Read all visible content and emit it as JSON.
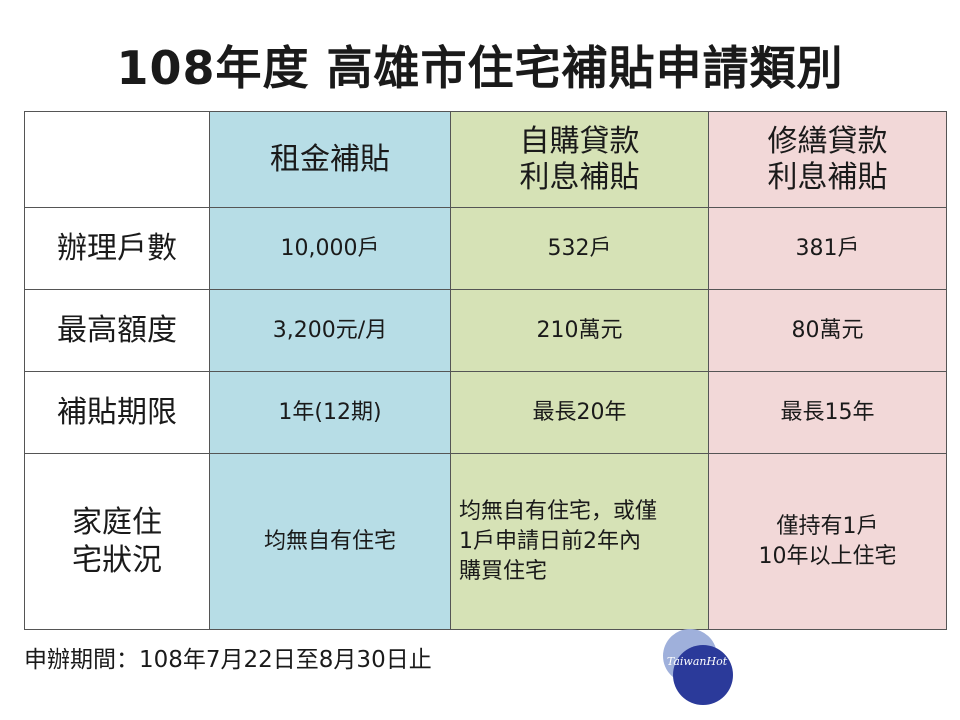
{
  "title": "108年度 高雄市住宅補貼申請類別",
  "table": {
    "columns": [
      {
        "lines": [
          "租金補貼"
        ]
      },
      {
        "lines": [
          "自購貸款",
          "利息補貼"
        ]
      },
      {
        "lines": [
          "修繕貸款",
          "利息補貼"
        ]
      }
    ],
    "rows": [
      {
        "label": [
          "辦理戶數"
        ],
        "values": [
          [
            "10,000戶"
          ],
          [
            "532戶"
          ],
          [
            "381戶"
          ]
        ]
      },
      {
        "label": [
          "最高額度"
        ],
        "values": [
          [
            "3,200元/月"
          ],
          [
            "210萬元"
          ],
          [
            "80萬元"
          ]
        ]
      },
      {
        "label": [
          "補貼期限"
        ],
        "values": [
          [
            "1年(12期)"
          ],
          [
            "最長20年"
          ],
          [
            "最長15年"
          ]
        ]
      },
      {
        "label": [
          "家庭住",
          "宅狀況"
        ],
        "values": [
          [
            "均無自有住宅"
          ],
          [
            "均無自有住宅，或僅",
            "1戶申請日前2年內",
            "購買住宅"
          ],
          [
            "僅持有1戶",
            "10年以上住宅"
          ]
        ]
      }
    ]
  },
  "footer": "申辦期間：108年7月22日至8月30日止",
  "logo": {
    "text": "TaiwanHot",
    "colors": {
      "light": "#9fb0db",
      "dark": "#2b3a9a"
    }
  },
  "colors": {
    "blue": "#b7dde6",
    "green": "#d6e2b6",
    "pink": "#f2d8d8"
  }
}
